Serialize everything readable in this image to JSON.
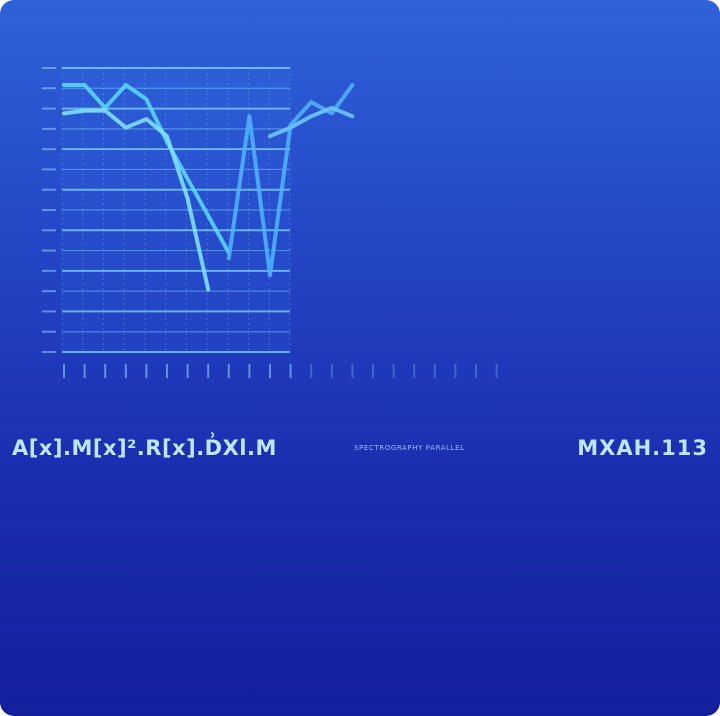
{
  "caption": {
    "left_text": "A[x].M[x]².R[x].D͗Xl.M",
    "middle_text": "SPECTROGRAPHY PARALLEL",
    "right_text": "MXAH.113"
  },
  "chart_data": {
    "type": "line",
    "title": "",
    "xlabel": "",
    "ylabel": "",
    "ylim": [
      0,
      100
    ],
    "grid": true,
    "x": [
      0,
      1,
      2,
      3,
      4,
      5,
      6,
      7,
      8,
      9,
      10,
      11,
      12,
      13,
      14,
      15,
      16,
      17,
      18,
      19,
      20,
      21
    ],
    "series": [
      {
        "color": "#5ad4ff",
        "values": [
          94,
          94,
          86,
          94,
          89,
          74,
          61,
          48,
          35,
          null,
          null,
          null,
          null,
          null,
          null,
          null,
          null,
          null,
          null,
          null,
          null,
          null
        ]
      },
      {
        "color": "#7fe0ff",
        "values": [
          84,
          85,
          85,
          79,
          82,
          76,
          54,
          22,
          null,
          null,
          null,
          null,
          null,
          null,
          null,
          null,
          null,
          null,
          null,
          null,
          null,
          null
        ]
      },
      {
        "color": "#4fb0ff",
        "values": [
          null,
          null,
          null,
          null,
          null,
          null,
          null,
          null,
          33,
          83,
          27,
          80,
          88,
          84,
          94,
          null,
          null,
          null,
          null,
          null,
          null,
          null
        ]
      },
      {
        "color": "#6cc6ff",
        "values": [
          null,
          null,
          null,
          null,
          null,
          null,
          null,
          null,
          null,
          null,
          76,
          79,
          83,
          86,
          83,
          null,
          null,
          null,
          null,
          null,
          null,
          null
        ]
      }
    ]
  }
}
